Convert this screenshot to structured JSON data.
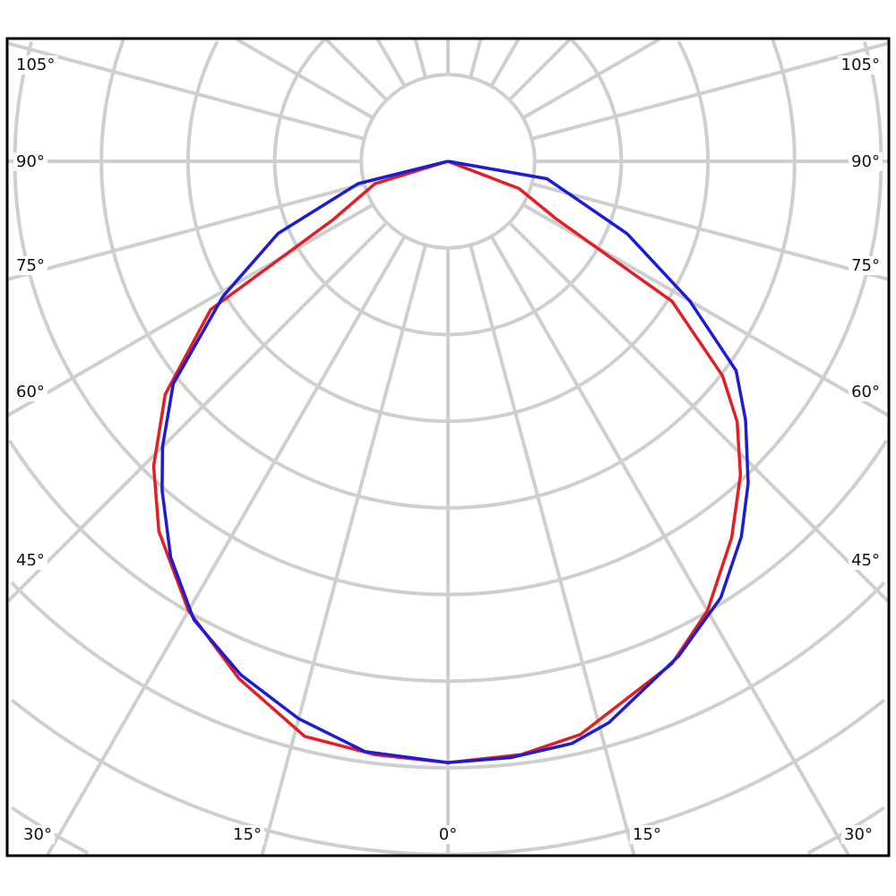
{
  "chart_data": {
    "type": "polar-line",
    "angle_unit": "degrees",
    "radial_unit": "grid rings",
    "grid": true,
    "angle_step": 15,
    "ring_count": 10,
    "side_labels": [
      "105°",
      "90°",
      "75°",
      "60°",
      "45°"
    ],
    "bottom_labels": [
      "30°",
      "15°",
      "0°",
      "15°",
      "30°"
    ],
    "series": [
      {
        "color": "#e31e24",
        "points": [
          [
            -90,
            0
          ],
          [
            -73,
            0.88
          ],
          [
            -63,
            1.5
          ],
          [
            -58,
            3.23
          ],
          [
            -50.5,
            4.23
          ],
          [
            -44,
            4.89
          ],
          [
            -38,
            5.42
          ],
          [
            -30,
            5.99
          ],
          [
            -22,
            6.44
          ],
          [
            -14,
            6.84
          ],
          [
            -7,
            6.9
          ],
          [
            0,
            6.94
          ],
          [
            7,
            6.9
          ],
          [
            13,
            6.79
          ],
          [
            24,
            6.35
          ],
          [
            30,
            5.99
          ],
          [
            37,
            5.44
          ],
          [
            43,
            4.95
          ],
          [
            48,
            4.49
          ],
          [
            52,
            4.02
          ],
          [
            58,
            3.05
          ],
          [
            62,
            1.41
          ],
          [
            69,
            0.88
          ],
          [
            90,
            0
          ]
        ]
      },
      {
        "color": "#1c1cd6",
        "points": [
          [
            -90,
            0
          ],
          [
            -76,
            1.07
          ],
          [
            -67,
            2.13
          ],
          [
            -59,
            3.03
          ],
          [
            -51,
            4.08
          ],
          [
            -45,
            4.66
          ],
          [
            -41,
            5.03
          ],
          [
            -35,
            5.58
          ],
          [
            -29,
            6.05
          ],
          [
            -22,
            6.39
          ],
          [
            -15,
            6.66
          ],
          [
            -8,
            6.88
          ],
          [
            0,
            6.94
          ],
          [
            6,
            6.92
          ],
          [
            12,
            6.87
          ],
          [
            16,
            6.74
          ],
          [
            25,
            6.3
          ],
          [
            32,
            5.94
          ],
          [
            38,
            5.5
          ],
          [
            43,
            5.08
          ],
          [
            49,
            4.55
          ],
          [
            54,
            4.11
          ],
          [
            60,
            3.22
          ],
          [
            68,
            2.23
          ],
          [
            80,
            1.16
          ],
          [
            90,
            0
          ]
        ]
      }
    ]
  }
}
